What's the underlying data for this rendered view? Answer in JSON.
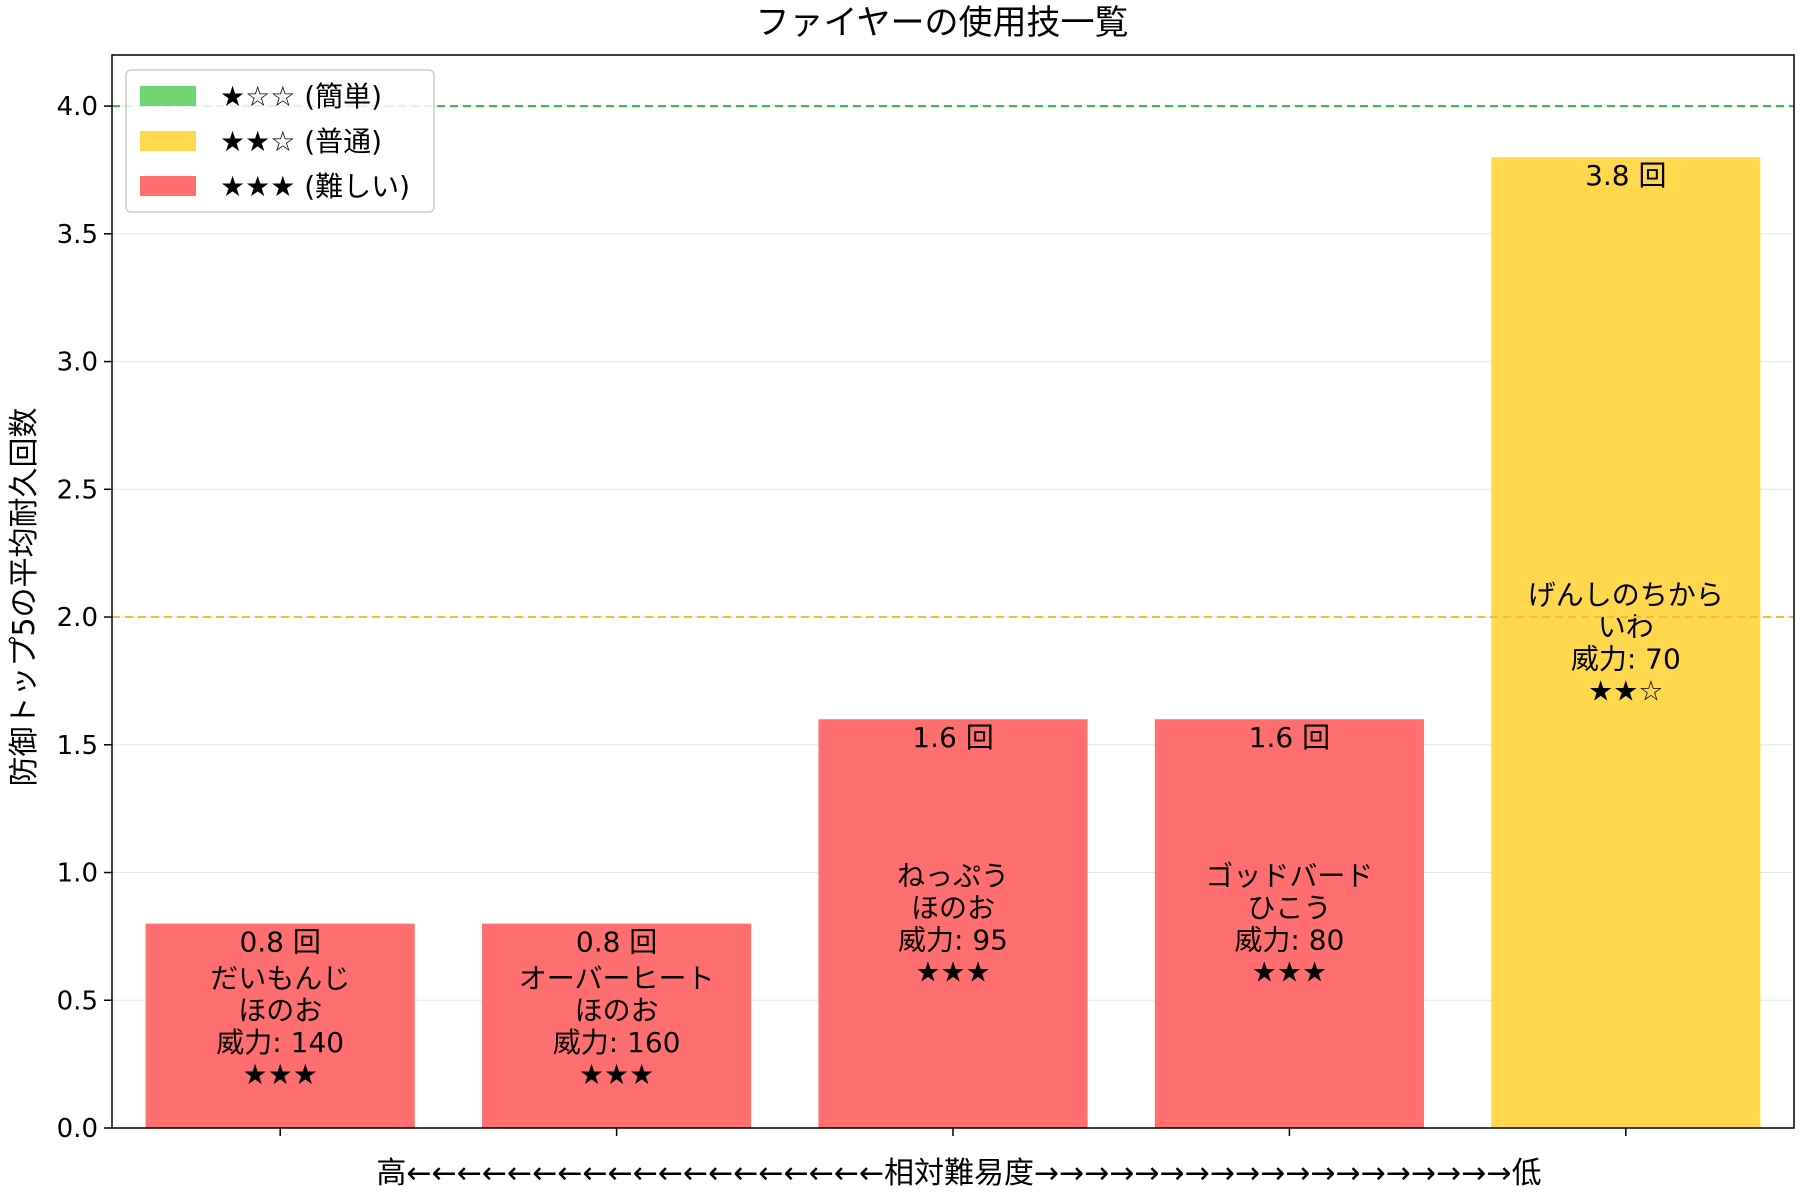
{
  "chart_data": {
    "type": "bar",
    "title": "ファイヤーの使用技一覧",
    "ylabel": "防御トップ5の平均耐久回数",
    "xlabel": "高←←←←←←←←←←←←←←←←←←←相対難易度→→→→→→→→→→→→→→→→→→→低",
    "ylim": [
      0,
      4.2
    ],
    "yticks": [
      "0.0",
      "0.5",
      "1.0",
      "1.5",
      "2.0",
      "2.5",
      "3.0",
      "3.5",
      "4.0"
    ],
    "reference_lines": [
      {
        "y": 4.0,
        "color": "#3cb043",
        "style": "dashed"
      },
      {
        "y": 2.0,
        "color": "#f0c030",
        "style": "dashed"
      }
    ],
    "grid": "horizontal",
    "legend_position": "top-left",
    "legend": [
      {
        "label": "★☆☆ (簡単)",
        "color": "#6fd66f"
      },
      {
        "label": "★★☆ (普通)",
        "color": "#ffd84d"
      },
      {
        "label": "★★★ (難しい)",
        "color": "#ff6f6f"
      }
    ],
    "bars": [
      {
        "move": "だいもんじ",
        "type": "ほのお",
        "power": "威力: 140",
        "stars": "★★★",
        "value": 0.8,
        "value_label": "0.8 回",
        "color": "#ff6f6f"
      },
      {
        "move": "オーバーヒート",
        "type": "ほのお",
        "power": "威力: 160",
        "stars": "★★★",
        "value": 0.8,
        "value_label": "0.8 回",
        "color": "#ff6f6f"
      },
      {
        "move": "ねっぷう",
        "type": "ほのお",
        "power": "威力: 95",
        "stars": "★★★",
        "value": 1.6,
        "value_label": "1.6 回",
        "color": "#ff6f6f"
      },
      {
        "move": "ゴッドバード",
        "type": "ひこう",
        "power": "威力: 80",
        "stars": "★★★",
        "value": 1.6,
        "value_label": "1.6 回",
        "color": "#ff6f6f"
      },
      {
        "move": "げんしのちから",
        "type": "いわ",
        "power": "威力: 70",
        "stars": "★★☆",
        "value": 3.8,
        "value_label": "3.8 回",
        "color": "#ffd84d"
      }
    ]
  }
}
